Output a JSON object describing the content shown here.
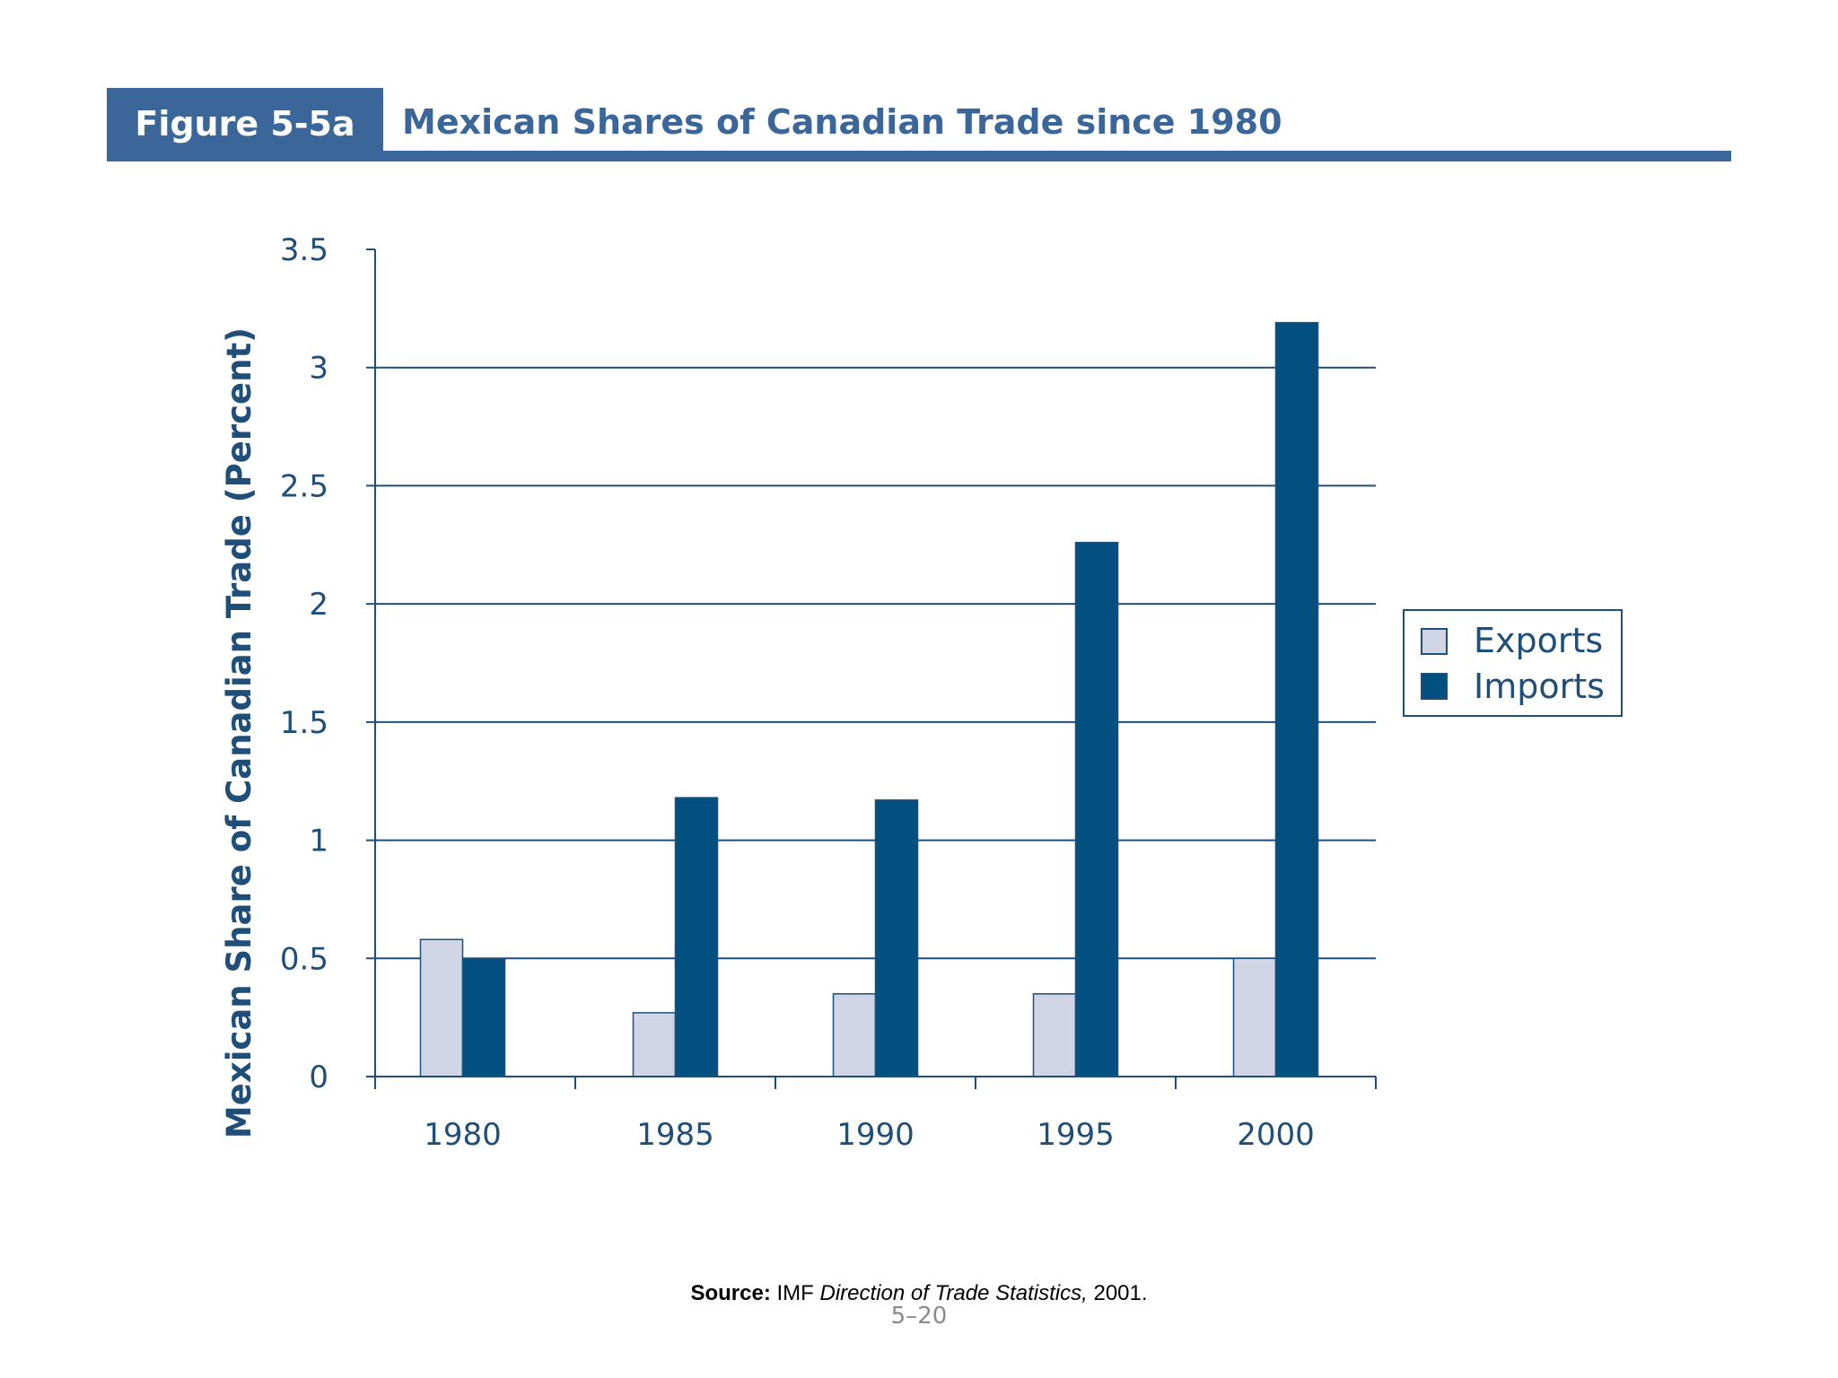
{
  "header": {
    "figure_number": "Figure 5-5a",
    "title": "Mexican Shares of Canadian Trade since 1980"
  },
  "footer": {
    "source_label": "Source:",
    "source_prefix": "IMF",
    "source_title": "Direction of Trade Statistics,",
    "source_year": "2001.",
    "page_number": "5–20"
  },
  "colors": {
    "header_blue": "#3b6699",
    "exports": "#d0d5e6",
    "imports": "#02507f",
    "axis": "#1f4e79"
  },
  "chart_data": {
    "type": "bar",
    "categories": [
      "1980",
      "1985",
      "1990",
      "1995",
      "2000"
    ],
    "series": [
      {
        "name": "Exports",
        "values": [
          0.58,
          0.27,
          0.35,
          0.35,
          0.5
        ]
      },
      {
        "name": "Imports",
        "values": [
          0.5,
          1.18,
          1.17,
          2.26,
          3.19
        ]
      }
    ],
    "title": "Mexican Shares of Canadian Trade since 1980",
    "xlabel": "",
    "ylabel": "Mexican Share of Canadian Trade (Percent)",
    "ylim": [
      0,
      3.5
    ],
    "yticks": [
      0,
      0.5,
      1,
      1.5,
      2,
      2.5,
      3,
      3.5
    ],
    "ytick_labels": [
      "0",
      "0.5",
      "1",
      "1.5",
      "2",
      "2.5",
      "3",
      "3.5"
    ],
    "grid": true,
    "legend_position": "right"
  }
}
